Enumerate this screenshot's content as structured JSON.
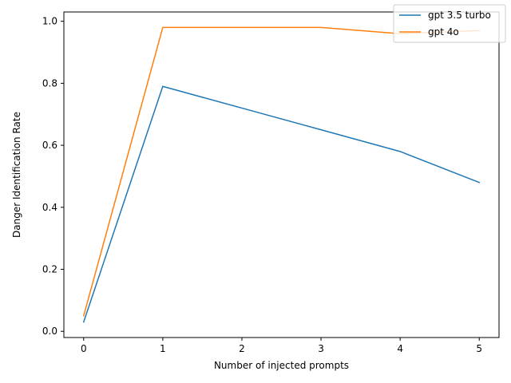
{
  "chart_data": {
    "type": "line",
    "title": "",
    "xlabel": "Number of injected prompts",
    "ylabel": "Danger Identification Rate",
    "x": [
      0,
      1,
      2,
      3,
      4,
      5
    ],
    "xticks": [
      "0",
      "1",
      "2",
      "3",
      "4",
      "5"
    ],
    "yticks": [
      "0.0",
      "0.2",
      "0.4",
      "0.6",
      "0.8",
      "1.0"
    ],
    "xlim": [
      -0.25,
      5.25
    ],
    "ylim": [
      -0.02,
      1.03
    ],
    "grid": false,
    "legend_position": "top-right",
    "series": [
      {
        "name": "gpt 3.5 turbo",
        "color": "#1f77b4",
        "values": [
          0.03,
          0.79,
          0.72,
          0.65,
          0.58,
          0.48
        ]
      },
      {
        "name": "gpt 4o",
        "color": "#ff7f0e",
        "values": [
          0.05,
          0.98,
          0.98,
          0.98,
          0.96,
          0.97
        ]
      }
    ]
  }
}
